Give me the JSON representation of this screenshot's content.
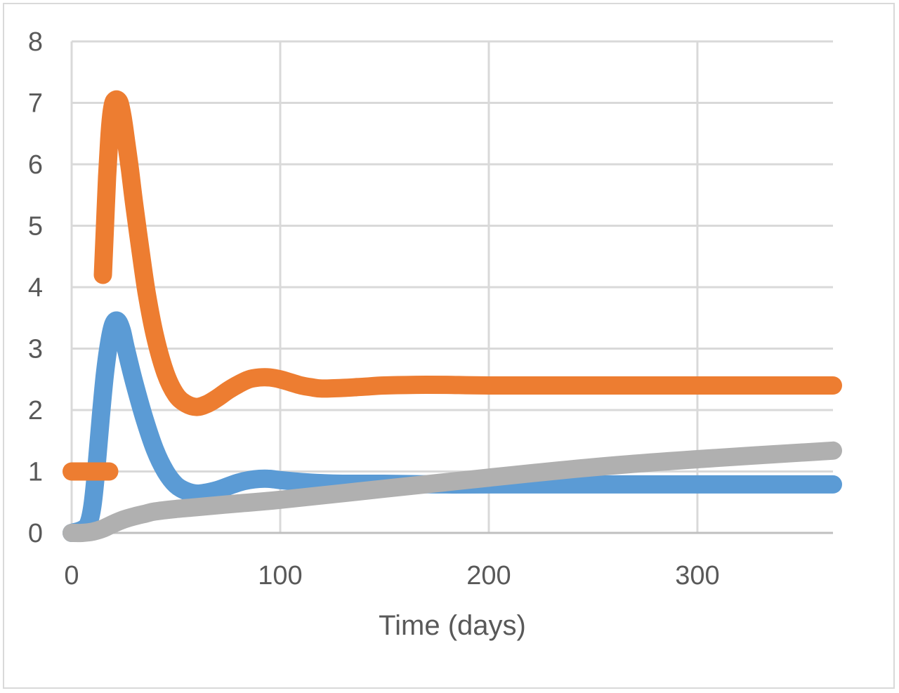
{
  "chart_data": {
    "type": "line",
    "title": "",
    "xlabel": "Time (days)",
    "ylabel": "",
    "xlim": [
      0,
      365
    ],
    "ylim": [
      0,
      8
    ],
    "x_ticks": [
      0,
      100,
      200,
      300
    ],
    "x_tick_labels": [
      "0",
      "100",
      "200",
      "300"
    ],
    "y_ticks": [
      0,
      1,
      2,
      3,
      4,
      5,
      6,
      7,
      8
    ],
    "y_tick_labels": [
      "0",
      "1",
      "2",
      "3",
      "4",
      "5",
      "6",
      "7",
      "8"
    ],
    "grid": true,
    "legend": "none",
    "series": [
      {
        "color": "#5b9bd5",
        "segments": [
          {
            "x": [
              0,
              5,
              8,
              10,
              12,
              14,
              16,
              18,
              20,
              22,
              24,
              26,
              30,
              35,
              40,
              45,
              50,
              55,
              60,
              65,
              70,
              75,
              80,
              85,
              90,
              95,
              100,
              110,
              120,
              130,
              150,
              175,
              200,
              250,
              300,
              365
            ],
            "y": [
              0,
              0.05,
              0.15,
              0.45,
              1.1,
              1.9,
              2.6,
              3.1,
              3.4,
              3.45,
              3.3,
              3.0,
              2.45,
              1.85,
              1.35,
              1.0,
              0.78,
              0.68,
              0.64,
              0.66,
              0.7,
              0.76,
              0.82,
              0.86,
              0.88,
              0.88,
              0.86,
              0.83,
              0.81,
              0.8,
              0.8,
              0.79,
              0.79,
              0.79,
              0.79,
              0.79
            ]
          }
        ]
      },
      {
        "color": "#ed7d31",
        "segments": [
          {
            "x": [
              0,
              6,
              12,
              18
            ],
            "y": [
              1,
              1,
              1,
              1
            ]
          },
          {
            "x": [
              15,
              16,
              17,
              18,
              19,
              20,
              21,
              22,
              23,
              24,
              25,
              26,
              28,
              30,
              33,
              36,
              40,
              45,
              50,
              55,
              60,
              65,
              70,
              75,
              80,
              85,
              90,
              95,
              100,
              105,
              110,
              115,
              120,
              130,
              140,
              150,
              165,
              180,
              200,
              250,
              300,
              365
            ],
            "y": [
              4.2,
              5.0,
              5.8,
              6.4,
              6.8,
              7.0,
              7.05,
              7.05,
              7.0,
              6.85,
              6.65,
              6.4,
              5.9,
              5.35,
              4.6,
              3.9,
              3.2,
              2.6,
              2.25,
              2.1,
              2.05,
              2.1,
              2.2,
              2.32,
              2.42,
              2.5,
              2.53,
              2.53,
              2.5,
              2.45,
              2.4,
              2.37,
              2.35,
              2.36,
              2.38,
              2.4,
              2.41,
              2.41,
              2.4,
              2.4,
              2.4,
              2.4
            ]
          }
        ]
      },
      {
        "color": "#b0b0b0",
        "segments": [
          {
            "x": [
              0,
              5,
              10,
              15,
              20,
              25,
              30,
              35,
              40,
              50,
              60,
              80,
              100,
              150,
              200,
              250,
              300,
              365
            ],
            "y": [
              0,
              0,
              0.02,
              0.07,
              0.15,
              0.22,
              0.27,
              0.31,
              0.35,
              0.39,
              0.42,
              0.48,
              0.54,
              0.72,
              0.9,
              1.07,
              1.2,
              1.34
            ]
          }
        ]
      }
    ]
  }
}
